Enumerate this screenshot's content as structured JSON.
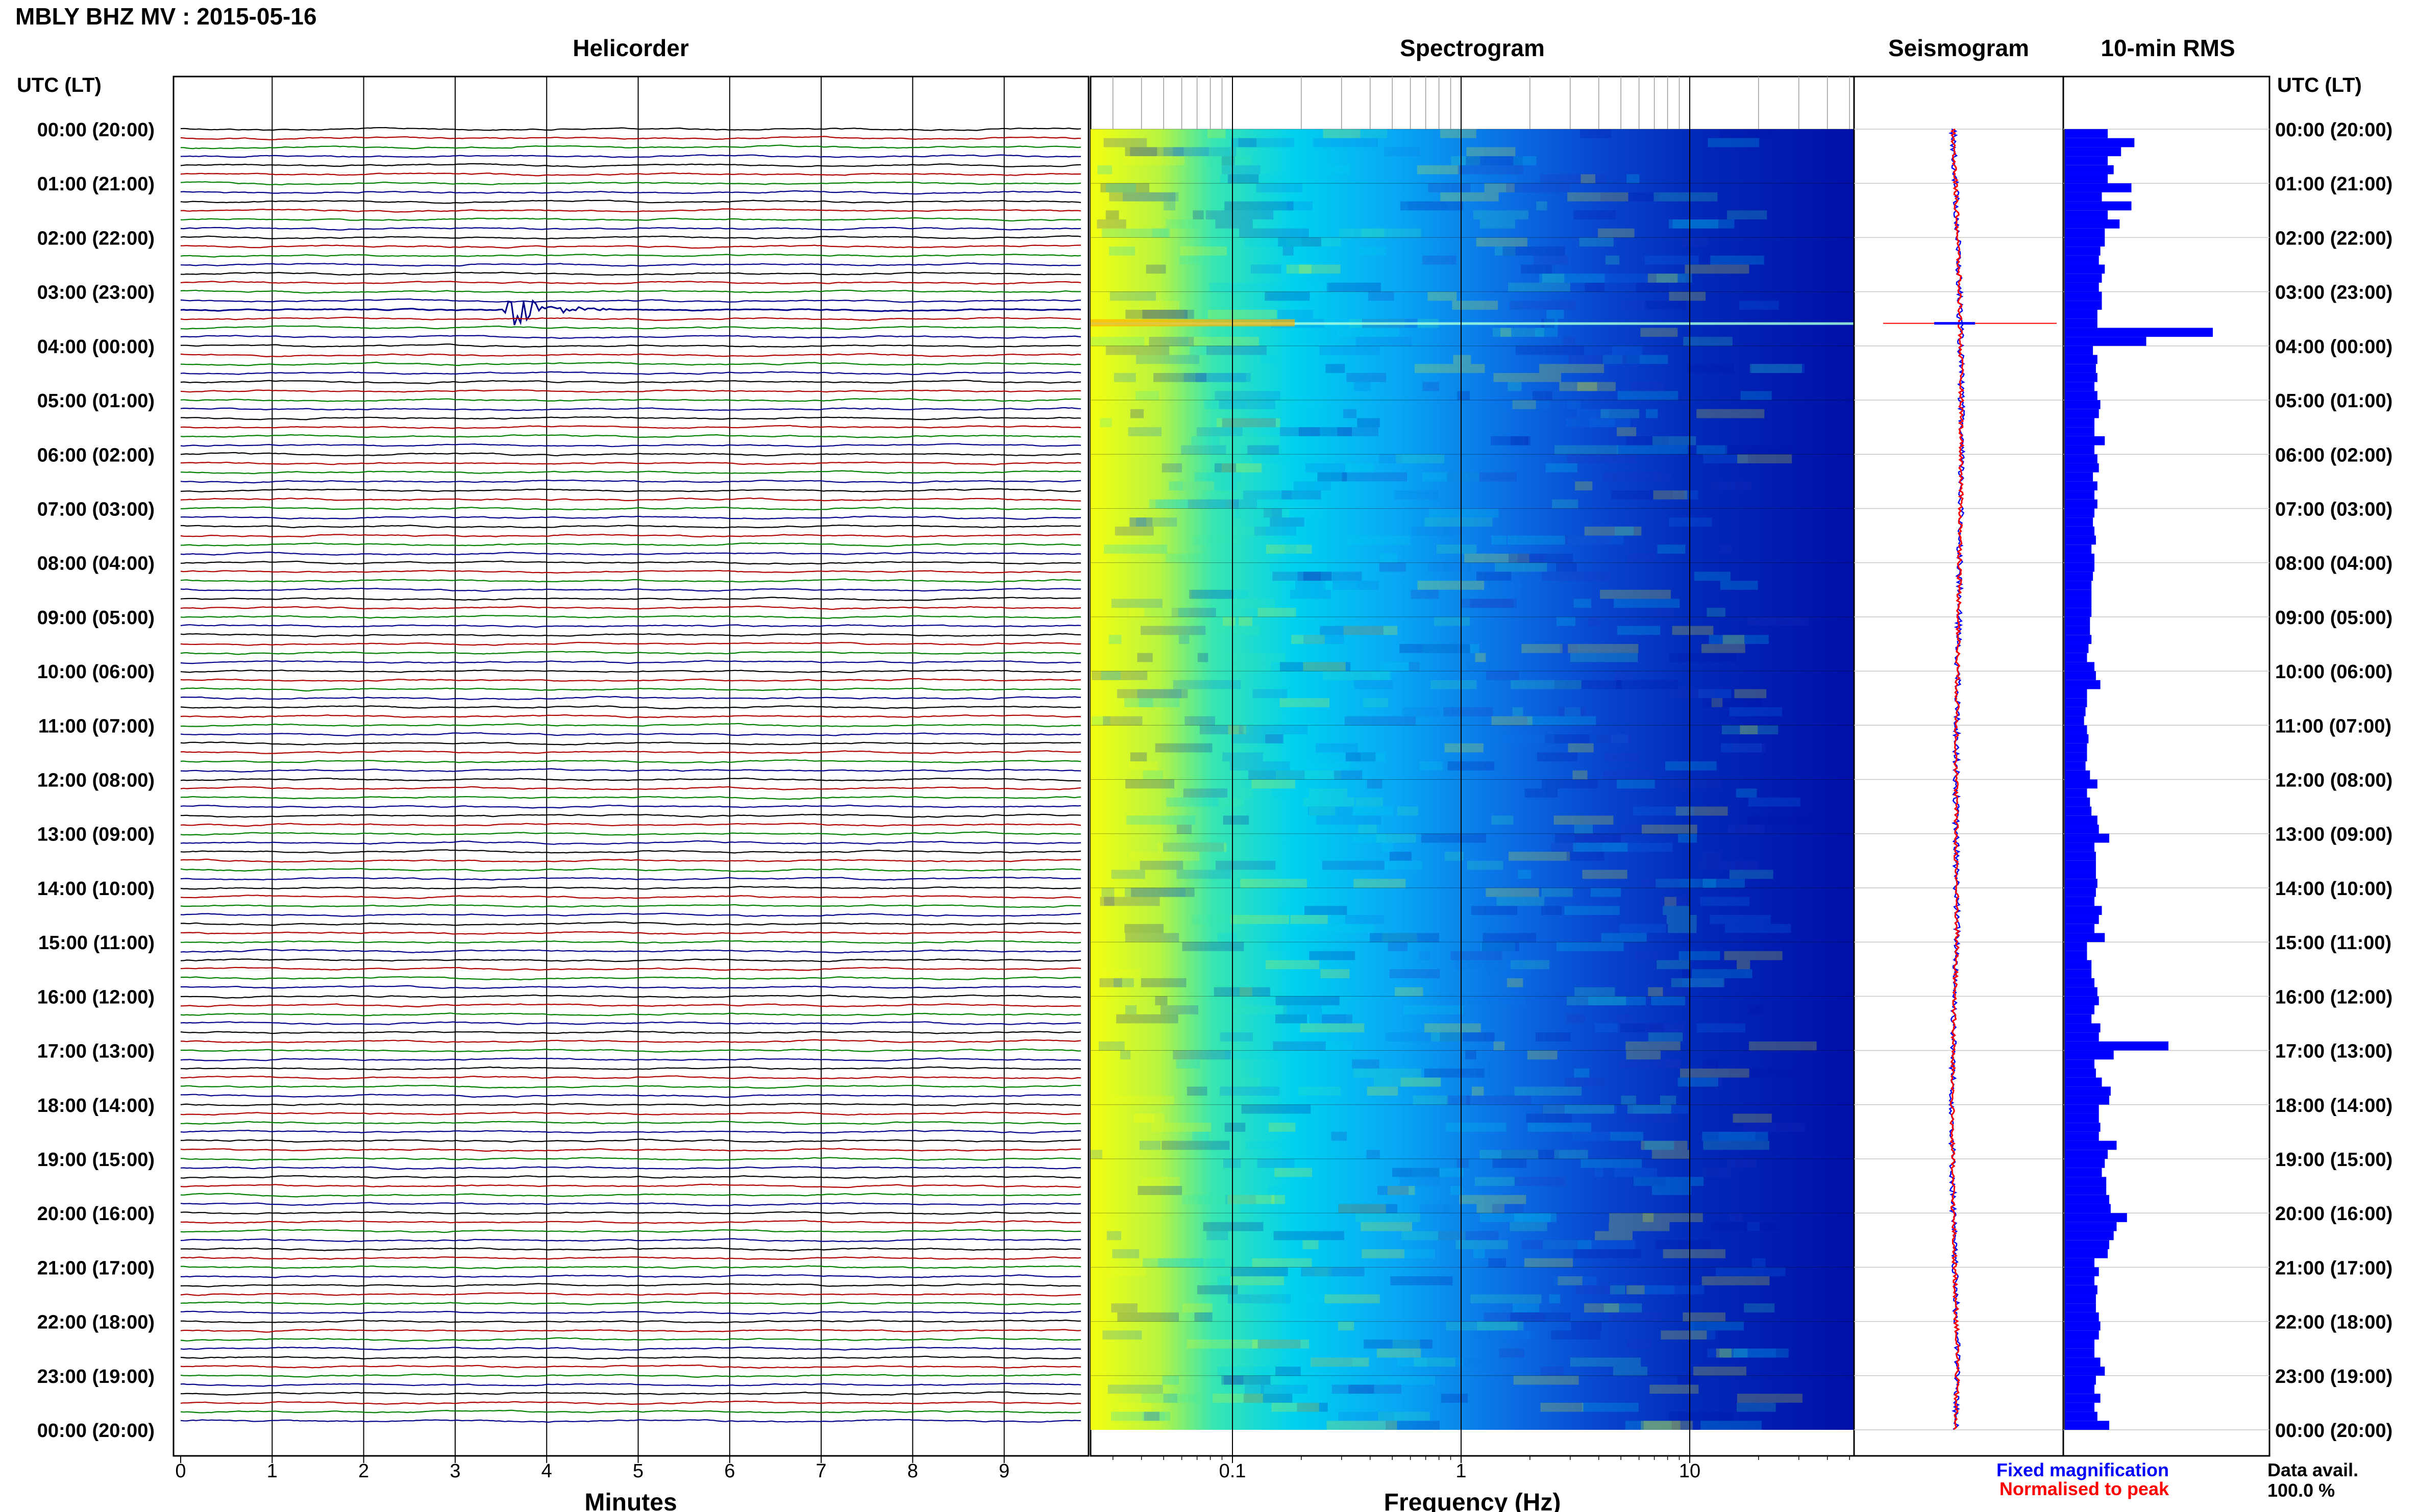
{
  "header": {
    "title": "MBLY BHZ MV : 2015-05-16"
  },
  "panels": {
    "helicorder": "Helicorder",
    "spectrogram": "Spectrogram",
    "seismogram": "Seismogram",
    "rms": "10-min RMS"
  },
  "time_axis": {
    "label_left": "UTC (LT)",
    "label_right": "UTC (LT)",
    "ticks": [
      "00:00 (20:00)",
      "01:00 (21:00)",
      "02:00 (22:00)",
      "03:00 (23:00)",
      "04:00 (00:00)",
      "05:00 (01:00)",
      "06:00 (02:00)",
      "07:00 (03:00)",
      "08:00 (04:00)",
      "09:00 (05:00)",
      "10:00 (06:00)",
      "11:00 (07:00)",
      "12:00 (08:00)",
      "13:00 (09:00)",
      "14:00 (10:00)",
      "15:00 (11:00)",
      "16:00 (12:00)",
      "17:00 (13:00)",
      "18:00 (14:00)",
      "19:00 (15:00)",
      "20:00 (16:00)",
      "21:00 (17:00)",
      "22:00 (18:00)",
      "23:00 (19:00)",
      "00:00 (20:00)"
    ]
  },
  "helicorder_axis": {
    "xlabel": "Minutes",
    "ticks": [
      "0",
      "1",
      "2",
      "3",
      "4",
      "5",
      "6",
      "7",
      "8",
      "9"
    ]
  },
  "spectrogram_axis": {
    "xlabel": "Frequency (Hz)",
    "ticks": [
      "0.1",
      "1",
      "10"
    ]
  },
  "legend": {
    "fixed": "Fixed magnification",
    "normalised": "Normalised to peak",
    "fixed_color": "#0000ff",
    "normalised_color": "#ff0000"
  },
  "data_avail": {
    "label": "Data avail.",
    "value": "100.0 %"
  },
  "colors": {
    "trace_cycle": [
      "#000000",
      "#b00000",
      "#008000",
      "#00008b"
    ],
    "rms_bar": "#0000ff",
    "event_trace": "#00008b"
  },
  "chart_data": [
    {
      "type": "line",
      "title": "Helicorder",
      "xlabel": "Minutes",
      "xlim": [
        0,
        10
      ],
      "rows": 144,
      "row_minutes": 10,
      "events": [
        {
          "time_utc": "03:20",
          "minute": 3.6,
          "note": "large transient"
        }
      ]
    },
    {
      "type": "heatmap",
      "title": "Spectrogram",
      "xlabel": "Frequency (Hz)",
      "xscale": "log",
      "xlim": [
        0.02,
        50
      ],
      "colormap": [
        "#ffff00",
        "#00ffc0",
        "#0090ff",
        "#0000a0"
      ]
    },
    {
      "type": "line",
      "title": "Seismogram",
      "series": [
        {
          "name": "Fixed magnification"
        },
        {
          "name": "Normalised to peak"
        }
      ]
    },
    {
      "type": "bar",
      "title": "10-min RMS",
      "orientation": "horizontal",
      "values": [
        0.29,
        0.47,
        0.38,
        0.29,
        0.33,
        0.29,
        0.45,
        0.25,
        0.45,
        0.29,
        0.37,
        0.27,
        0.27,
        0.24,
        0.23,
        0.27,
        0.25,
        0.23,
        0.25,
        0.25,
        0.22,
        0.22,
        1.0,
        0.55,
        0.19,
        0.22,
        0.21,
        0.22,
        0.2,
        0.22,
        0.24,
        0.23,
        0.2,
        0.2,
        0.27,
        0.2,
        0.22,
        0.23,
        0.19,
        0.22,
        0.2,
        0.22,
        0.2,
        0.19,
        0.2,
        0.21,
        0.18,
        0.2,
        0.2,
        0.19,
        0.18,
        0.18,
        0.18,
        0.18,
        0.17,
        0.17,
        0.18,
        0.16,
        0.15,
        0.2,
        0.21,
        0.24,
        0.15,
        0.15,
        0.14,
        0.13,
        0.15,
        0.16,
        0.15,
        0.15,
        0.14,
        0.17,
        0.22,
        0.15,
        0.17,
        0.18,
        0.22,
        0.23,
        0.3,
        0.2,
        0.21,
        0.21,
        0.21,
        0.22,
        0.21,
        0.2,
        0.25,
        0.23,
        0.2,
        0.27,
        0.15,
        0.15,
        0.18,
        0.18,
        0.2,
        0.22,
        0.23,
        0.2,
        0.18,
        0.24,
        0.23,
        0.7,
        0.33,
        0.2,
        0.21,
        0.25,
        0.31,
        0.3,
        0.23,
        0.23,
        0.24,
        0.23,
        0.35,
        0.29,
        0.27,
        0.25,
        0.28,
        0.28,
        0.3,
        0.31,
        0.42,
        0.35,
        0.33,
        0.3,
        0.29,
        0.2,
        0.23,
        0.2,
        0.22,
        0.21,
        0.21,
        0.23,
        0.24,
        0.23,
        0.2,
        0.2,
        0.24,
        0.27,
        0.21,
        0.2,
        0.24,
        0.2,
        0.22,
        0.3
      ]
    }
  ]
}
